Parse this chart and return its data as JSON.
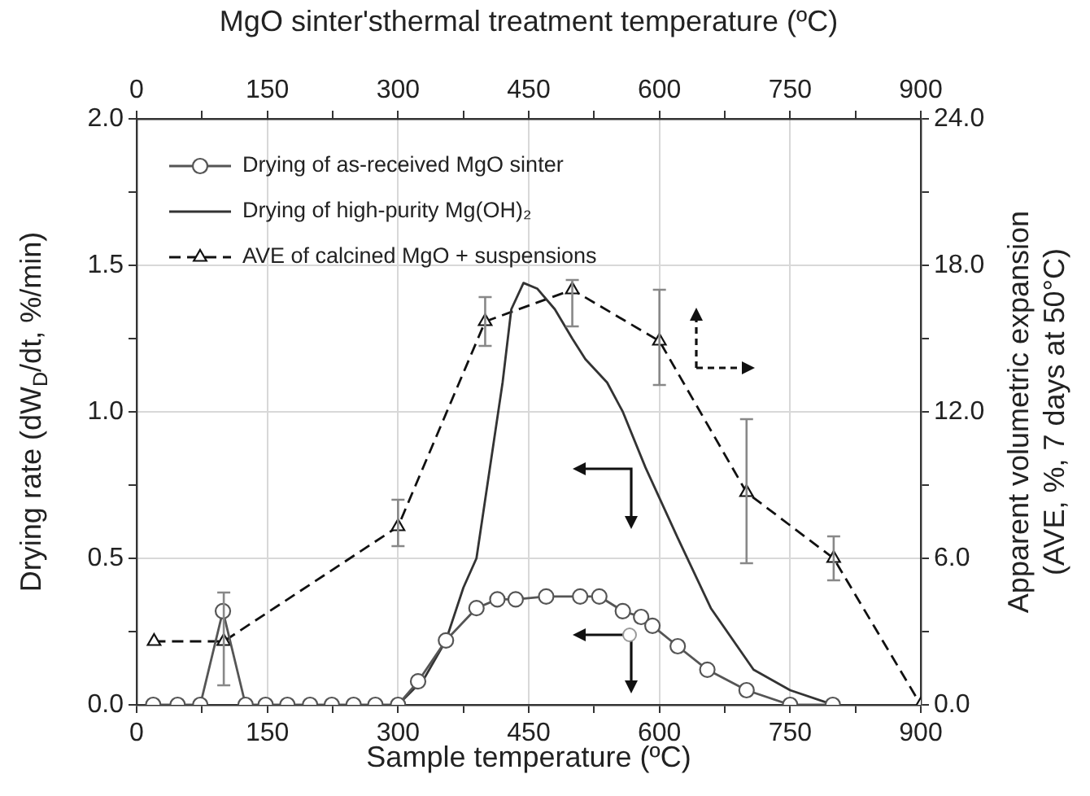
{
  "chart_data": {
    "type": "line",
    "xlabel": "Sample temperature (ºC)",
    "x2label": "MgO sinter'sthermal treatment temperature (ºC)",
    "ylabel": "Drying rate (dW$_{D}$/dt, %/min)",
    "y2label": "Apparent volumetric expansion\n(AVE, %, 7 days at 50°C)",
    "xlim": [
      0,
      900
    ],
    "xticks": [
      0,
      {
        "value": 75,
        "label": null
      },
      150,
      {
        "value": 225,
        "label": null
      },
      300,
      {
        "value": 375,
        "label": null
      },
      450,
      {
        "value": 525,
        "label": null
      },
      600,
      {
        "value": 675,
        "label": null
      },
      750,
      {
        "value": 825,
        "label": null
      },
      900
    ],
    "x2lim": [
      0,
      900
    ],
    "x2ticks": [
      0,
      {
        "value": 75,
        "label": null
      },
      150,
      {
        "value": 225,
        "label": null
      },
      300,
      {
        "value": 375,
        "label": null
      },
      450,
      {
        "value": 525,
        "label": null
      },
      600,
      {
        "value": 675,
        "label": null
      },
      750,
      {
        "value": 825,
        "label": null
      },
      900
    ],
    "ylim": [
      0,
      2
    ],
    "yticks": [
      {
        "value": 0,
        "label": "0.0"
      },
      {
        "value": 0.25,
        "label": null
      },
      {
        "value": 0.5,
        "label": "0.5"
      },
      {
        "value": 0.75,
        "label": null
      },
      {
        "value": 1,
        "label": "1.0"
      },
      {
        "value": 1.25,
        "label": null
      },
      {
        "value": 1.5,
        "label": "1.5"
      },
      {
        "value": 1.75,
        "label": null
      },
      {
        "value": 2,
        "label": "2.0"
      }
    ],
    "y2lim": [
      0,
      24
    ],
    "y2ticks": [
      {
        "value": 0,
        "label": "0.0"
      },
      {
        "value": 3,
        "label": null
      },
      {
        "value": 6,
        "label": "6.0"
      },
      {
        "value": 9,
        "label": null
      },
      {
        "value": 12,
        "label": "12.0"
      },
      {
        "value": 15,
        "label": null
      },
      {
        "value": 18,
        "label": "18.0"
      },
      {
        "value": 21,
        "label": null
      },
      {
        "value": 24,
        "label": "24.0"
      }
    ],
    "grid": true,
    "legend": "top left",
    "series": [
      {
        "name": "Drying of as-received MgO sinter",
        "color": "#555555",
        "marker": "circle",
        "line_style": "solid",
        "x": [
          19,
          47,
          73,
          99,
          125,
          148,
          173,
          199,
          224,
          249,
          274,
          300,
          323,
          355,
          390,
          414,
          435,
          470,
          509,
          531,
          558,
          579,
          592,
          621,
          655,
          700,
          750,
          799
        ],
        "values": [
          0,
          0,
          0,
          0.32,
          0,
          0,
          0,
          0,
          0,
          0,
          0,
          0,
          0.08,
          0.22,
          0.33,
          0.36,
          0.36,
          0.37,
          0.37,
          0.37,
          0.32,
          0.3,
          0.27,
          0.2,
          0.12,
          0.05,
          0,
          0
        ]
      },
      {
        "name": "Drying of high-purity Mg(OH)₂",
        "color": "#333333",
        "marker": "none",
        "line_style": "solid",
        "x": [
          300,
          330,
          355,
          375,
          390,
          410,
          420,
          430,
          444,
          460,
          480,
          500,
          515,
          540,
          558,
          584,
          621,
          659,
          708,
          750,
          800
        ],
        "values": [
          0,
          0.09,
          0.22,
          0.4,
          0.5,
          0.9,
          1.1,
          1.35,
          1.44,
          1.42,
          1.35,
          1.25,
          1.18,
          1.1,
          1.0,
          0.81,
          0.57,
          0.33,
          0.12,
          0.05,
          0
        ]
      },
      {
        "name": "AVE of calcined MgO + suspensions",
        "color": "#111111",
        "marker": "triangle",
        "line_style": "dashed",
        "axis": "y2",
        "x": [
          20,
          100,
          300,
          400,
          500,
          600,
          700,
          800,
          900
        ],
        "values": [
          2.6,
          2.6,
          7.3,
          15.7,
          17.0,
          14.9,
          8.7,
          6.0,
          0
        ],
        "errors": [
          null,
          [
            0.8,
            4.6
          ],
          [
            6.5,
            8.4
          ],
          [
            14.7,
            16.7
          ],
          [
            15.5,
            17.4
          ],
          [
            13.1,
            17.0
          ],
          [
            5.8,
            11.7
          ],
          [
            5.1,
            6.9
          ],
          null
        ]
      }
    ]
  }
}
